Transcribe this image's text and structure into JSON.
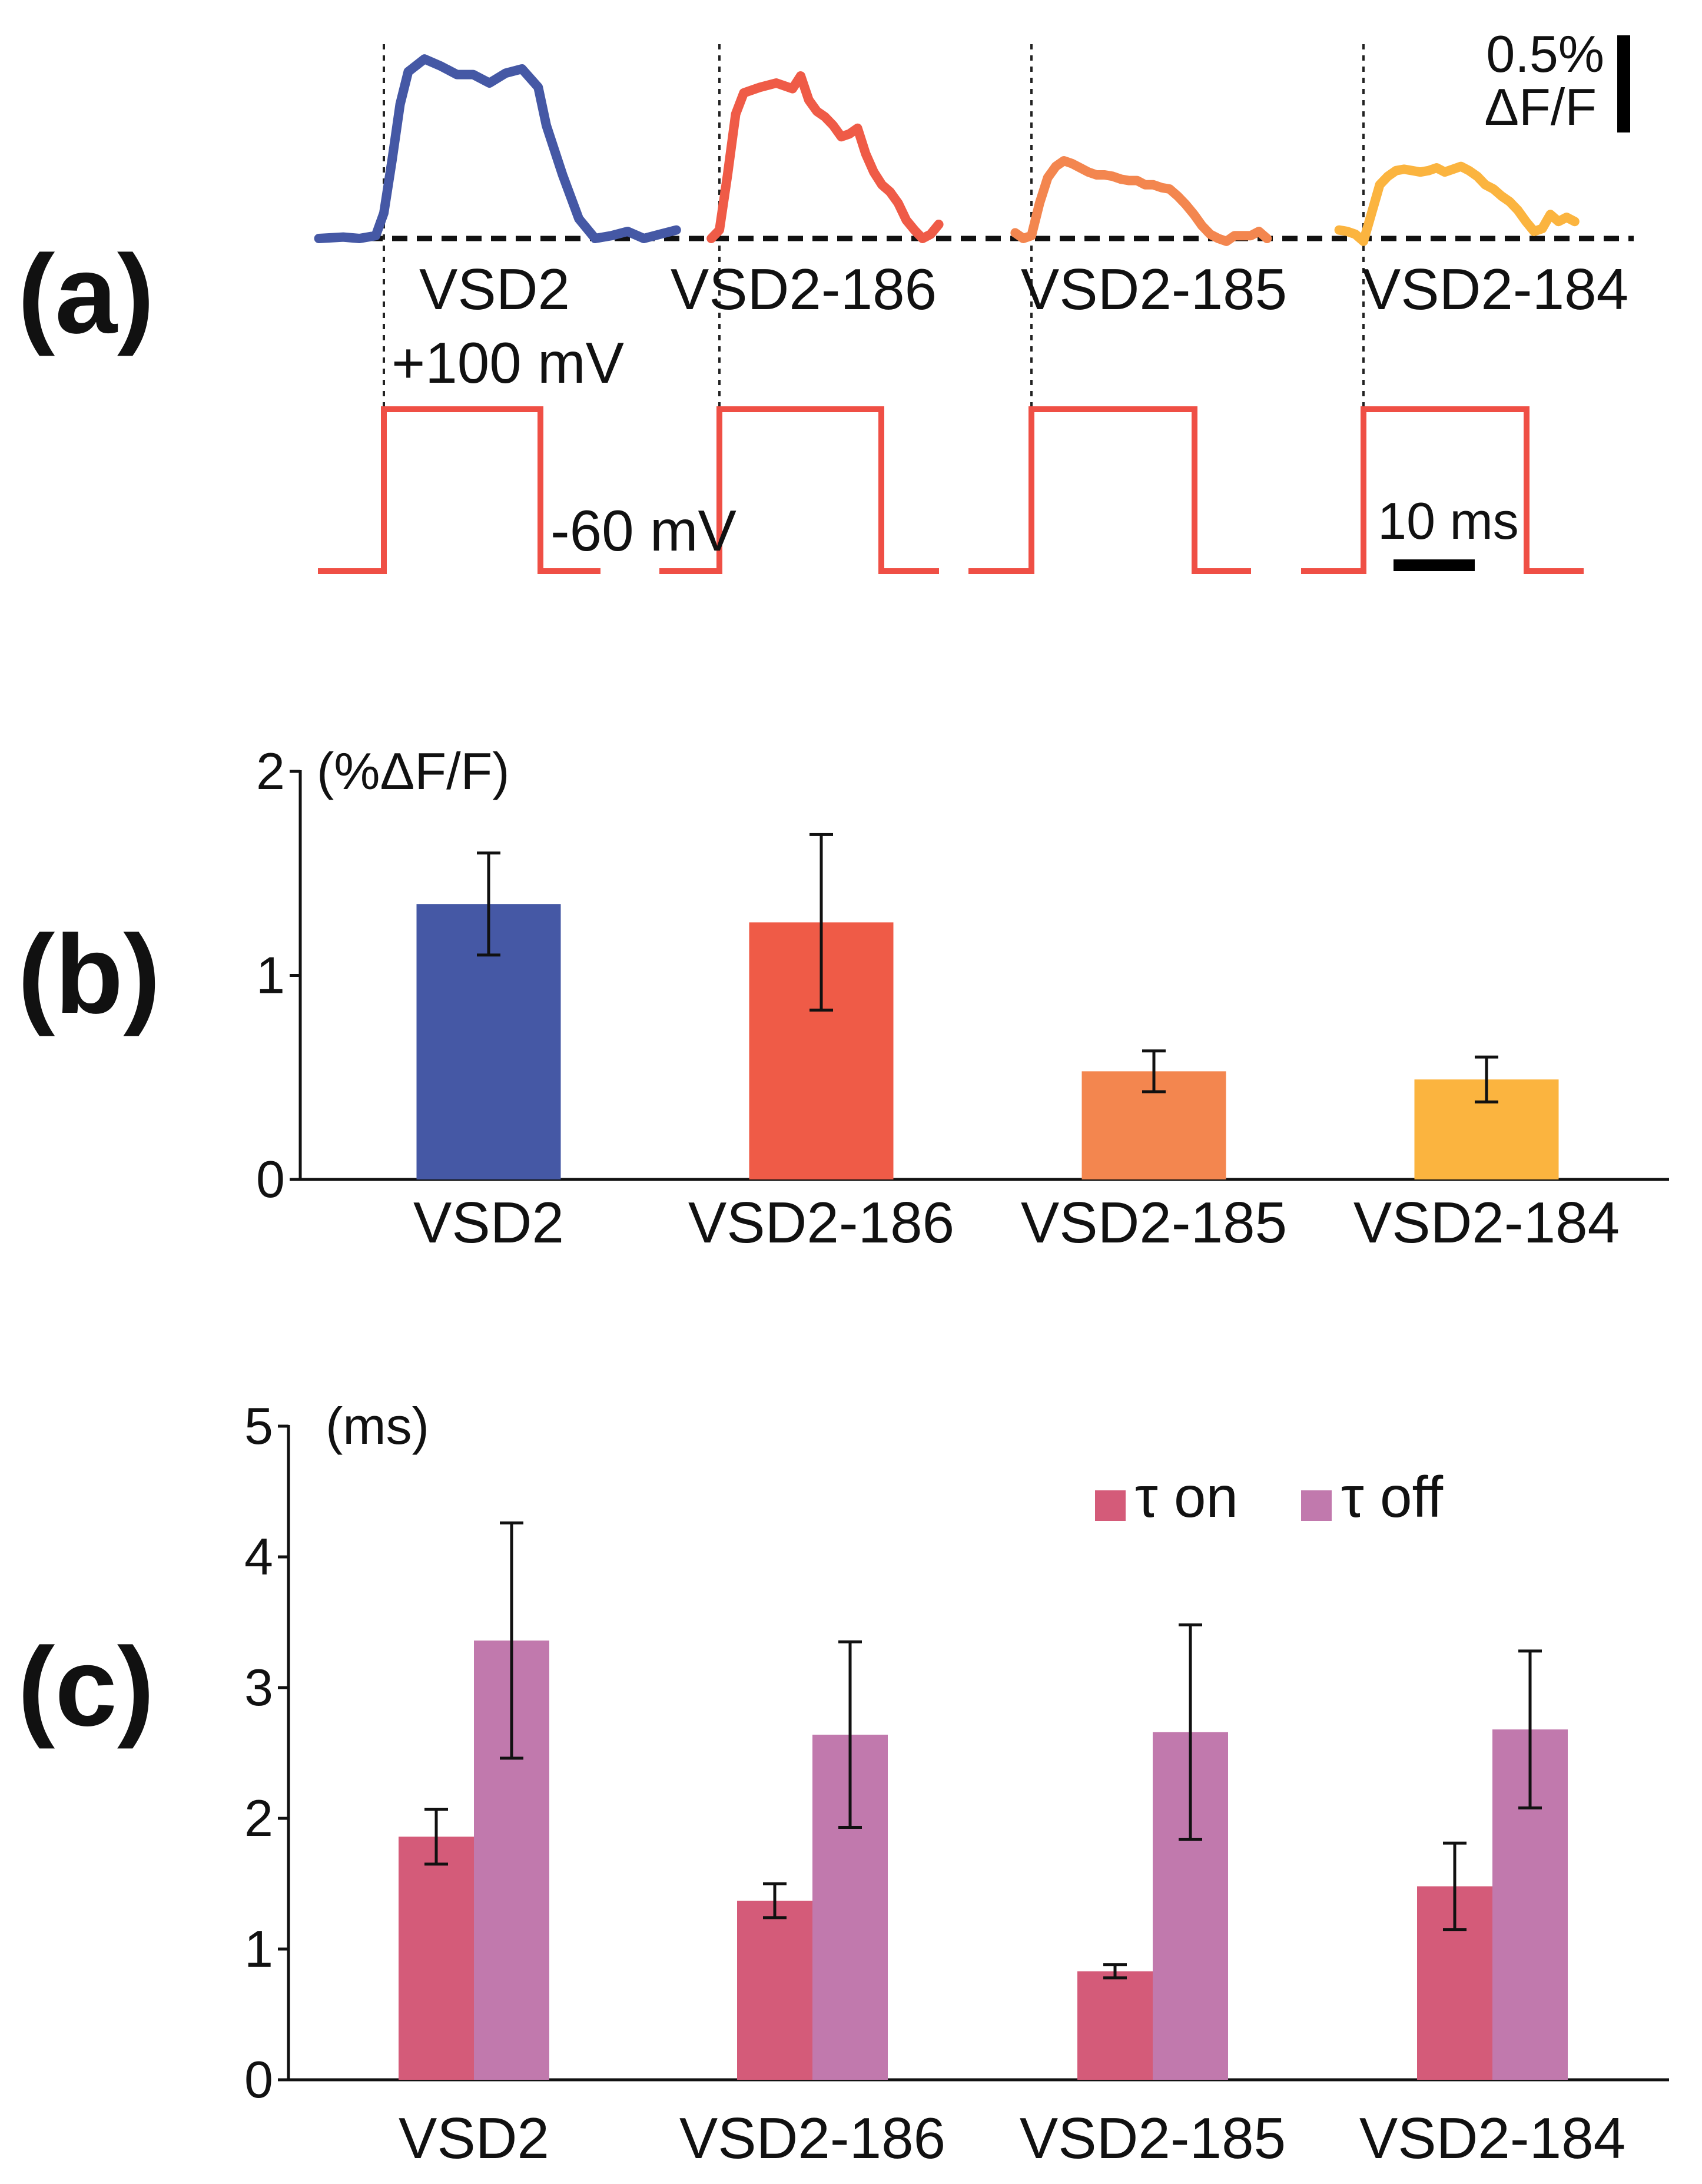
{
  "panel_labels": [
    "(a)",
    "(b)",
    "(c)"
  ],
  "colors": {
    "VSD2": "#4558a5",
    "VSD2-186": "#ef5b47",
    "VSD2-185": "#f3864f",
    "VSD2-184": "#fbb43f",
    "step": "#ef4f45",
    "tau_on": "#d45b79",
    "tau_off": "#c179ad",
    "axis": "#111111"
  },
  "panel_a": {
    "traces": [
      {
        "name": "VSD2",
        "t": [
          -8,
          -5,
          -3,
          -1,
          0,
          1,
          2,
          3,
          5,
          7,
          9,
          11,
          13,
          15,
          17,
          19,
          20,
          22,
          24,
          26,
          28,
          30,
          32,
          34,
          36
        ],
        "v": [
          0,
          0.01,
          0,
          0.02,
          0.18,
          0.55,
          0.95,
          1.18,
          1.27,
          1.22,
          1.16,
          1.16,
          1.1,
          1.17,
          1.2,
          1.07,
          0.8,
          0.45,
          0.14,
          0.0,
          0.02,
          0.05,
          0.0,
          0.03,
          0.06
        ]
      },
      {
        "name": "VSD2-186",
        "t": [
          -1,
          0,
          1,
          2,
          3,
          5,
          7,
          9,
          10,
          11,
          12,
          13,
          14,
          15,
          16,
          17,
          18,
          19,
          20,
          21,
          22,
          23,
          24,
          25,
          26,
          27
        ],
        "v": [
          0,
          0.06,
          0.45,
          0.88,
          1.03,
          1.07,
          1.1,
          1.06,
          1.15,
          0.98,
          0.9,
          0.86,
          0.8,
          0.72,
          0.74,
          0.78,
          0.6,
          0.47,
          0.38,
          0.33,
          0.25,
          0.13,
          0.06,
          0.0,
          0.03,
          0.1
        ]
      },
      {
        "name": "VSD2-185",
        "t": [
          -2,
          -1,
          0,
          1,
          2,
          3,
          4,
          5,
          6,
          7,
          8,
          9,
          10,
          11,
          12,
          13,
          14,
          15,
          16,
          17,
          18,
          19,
          20,
          21,
          22,
          23,
          24,
          25,
          26,
          27,
          28,
          29
        ],
        "v": [
          0.04,
          0.0,
          0.02,
          0.25,
          0.43,
          0.51,
          0.55,
          0.53,
          0.5,
          0.47,
          0.45,
          0.45,
          0.44,
          0.42,
          0.41,
          0.41,
          0.38,
          0.38,
          0.36,
          0.35,
          0.3,
          0.24,
          0.17,
          0.09,
          0.03,
          0.0,
          -0.02,
          0.02,
          0.02,
          0.02,
          0.05,
          0.0
        ]
      },
      {
        "name": "VSD2-184",
        "t": [
          -3,
          -2,
          -1,
          0,
          1,
          2,
          3,
          4,
          5,
          6,
          7,
          8,
          9,
          10,
          11,
          12,
          13,
          14,
          15,
          16,
          17,
          18,
          19,
          20,
          21,
          22,
          23,
          24,
          25,
          26
        ],
        "v": [
          0.06,
          0.05,
          0.03,
          -0.02,
          0.18,
          0.38,
          0.44,
          0.48,
          0.49,
          0.48,
          0.47,
          0.48,
          0.5,
          0.47,
          0.49,
          0.51,
          0.48,
          0.44,
          0.38,
          0.35,
          0.3,
          0.26,
          0.2,
          0.12,
          0.05,
          0.07,
          0.17,
          0.12,
          0.15,
          0.12
        ]
      }
    ],
    "step_high_label": "+100 mV",
    "step_low_label": "-60 mV",
    "time_scale_label": "10 ms",
    "amp_scale_label_top": "0.5%",
    "amp_scale_label_bottom": "ΔF/F"
  },
  "chart_data": [
    {
      "type": "bar",
      "title": "",
      "categories": [
        "VSD2",
        "VSD2-186",
        "VSD2-185",
        "VSD2-184"
      ],
      "values": [
        1.35,
        1.26,
        0.53,
        0.49
      ],
      "errors": [
        0.25,
        0.43,
        0.1,
        0.11
      ],
      "ylabel": "(%ΔF/F)",
      "xlabel": "",
      "ylim": [
        0,
        2
      ],
      "yticks": [
        0,
        1,
        2
      ],
      "grid": false
    },
    {
      "type": "bar",
      "title": "",
      "categories": [
        "VSD2",
        "VSD2-186",
        "VSD2-185",
        "VSD2-184"
      ],
      "series": [
        {
          "name": "τ on",
          "values": [
            1.86,
            1.37,
            0.83,
            1.48
          ],
          "errors": [
            0.21,
            0.13,
            0.05,
            0.33
          ]
        },
        {
          "name": "τ off",
          "values": [
            3.36,
            2.64,
            2.66,
            2.68
          ],
          "errors": [
            0.9,
            0.71,
            0.82,
            0.6
          ]
        }
      ],
      "ylabel": "(ms)",
      "xlabel": "",
      "ylim": [
        0,
        5
      ],
      "yticks": [
        0,
        1,
        2,
        3,
        4,
        5
      ],
      "legend_position": "top-right",
      "grid": false
    }
  ]
}
